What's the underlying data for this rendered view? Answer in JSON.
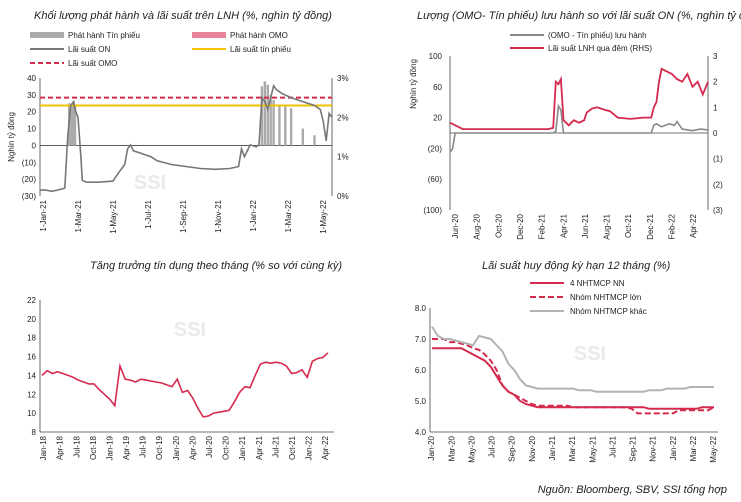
{
  "source_note": "Nguồn: Bloomberg, SBV, SSI tổng hợp",
  "watermark": "SSI",
  "chart_data": [
    {
      "id": "c1",
      "type": "bar+line",
      "title": "Khối lượng phát hành và lãi suất trên LNH (%, nghìn tỷ đồng)",
      "ylabel": "Nghìn tỷ đồng",
      "ylim": [
        -30,
        40
      ],
      "yticks": [
        "(30)",
        "(20)",
        "(10)",
        "0",
        "10",
        "20",
        "30",
        "40"
      ],
      "y2lim": [
        0,
        3
      ],
      "y2ticks": [
        "0%",
        "1%",
        "2%",
        "3%"
      ],
      "x_labels": [
        "1-Jan-21",
        "1-Mar-21",
        "1-May-21",
        "1-Jul-21",
        "1-Sep-21",
        "1-Nov-21",
        "1-Jan-22",
        "1-Mar-22",
        "1-May-22"
      ],
      "legend": [
        "Phát hành Tín phiếu",
        "Phát hành OMO",
        "Lãi suất ON",
        "Lãi suất tín phiếu",
        "Lãi suất OMO"
      ],
      "colors": {
        "tinphieu_bar": "#aaaaaa",
        "omo_bar": "#e8839a",
        "on": "#777777",
        "tinphieu_rate": "#f5c400",
        "omo_rate": "#d42a4d"
      },
      "omo_rate": 2.5,
      "tinphieu_rate": 2.3,
      "on_rate_points": [
        [
          0,
          0.15
        ],
        [
          0.02,
          0.15
        ],
        [
          0.04,
          0.12
        ],
        [
          0.06,
          0.15
        ],
        [
          0.085,
          0.2
        ],
        [
          0.095,
          1.5
        ],
        [
          0.105,
          2.3
        ],
        [
          0.115,
          2.4
        ],
        [
          0.12,
          2.2
        ],
        [
          0.13,
          2.0
        ],
        [
          0.14,
          1.0
        ],
        [
          0.145,
          0.4
        ],
        [
          0.16,
          0.35
        ],
        [
          0.2,
          0.35
        ],
        [
          0.25,
          0.38
        ],
        [
          0.27,
          0.6
        ],
        [
          0.29,
          0.8
        ],
        [
          0.3,
          1.2
        ],
        [
          0.31,
          1.3
        ],
        [
          0.32,
          1.15
        ],
        [
          0.34,
          1.1
        ],
        [
          0.38,
          1.0
        ],
        [
          0.4,
          0.9
        ],
        [
          0.45,
          0.8
        ],
        [
          0.5,
          0.75
        ],
        [
          0.55,
          0.7
        ],
        [
          0.6,
          0.68
        ],
        [
          0.65,
          0.7
        ],
        [
          0.68,
          0.75
        ],
        [
          0.69,
          1.2
        ],
        [
          0.7,
          1.0
        ],
        [
          0.72,
          1.3
        ],
        [
          0.74,
          1.25
        ],
        [
          0.75,
          1.3
        ],
        [
          0.76,
          2.5
        ],
        [
          0.77,
          2.4
        ],
        [
          0.78,
          2.2
        ],
        [
          0.79,
          2.5
        ],
        [
          0.8,
          2.8
        ],
        [
          0.81,
          2.7
        ],
        [
          0.83,
          2.6
        ],
        [
          0.86,
          2.5
        ],
        [
          0.9,
          2.4
        ],
        [
          0.94,
          2.3
        ],
        [
          0.96,
          2.2
        ],
        [
          0.97,
          1.9
        ],
        [
          0.98,
          1.4
        ],
        [
          0.99,
          2.1
        ],
        [
          1,
          2.0
        ]
      ],
      "bars": [
        [
          0.095,
          2
        ],
        [
          0.1,
          25
        ],
        [
          0.108,
          23
        ],
        [
          0.115,
          26
        ],
        [
          0.12,
          24
        ],
        [
          0.76,
          35
        ],
        [
          0.77,
          38
        ],
        [
          0.78,
          36
        ],
        [
          0.79,
          30
        ],
        [
          0.8,
          27
        ],
        [
          0.82,
          24
        ],
        [
          0.84,
          23
        ],
        [
          0.86,
          22
        ],
        [
          0.9,
          10
        ],
        [
          0.94,
          6
        ]
      ]
    },
    {
      "id": "c2",
      "type": "bar+line",
      "title": "Lượng (OMO- Tín phiếu) lưu hành so với lãi suất ON (%, nghìn tỷ đồng)",
      "ylabel": "Nghìn tỷ đồng",
      "ylim": [
        -100,
        100
      ],
      "yticks": [
        "(100)",
        "(60)",
        "(20)",
        "20",
        "60",
        "100"
      ],
      "y2lim": [
        -3,
        3
      ],
      "y2ticks": [
        "(3)",
        "(2)",
        "(1)",
        "0",
        "1",
        "2",
        "3"
      ],
      "x_labels": [
        "Jun-20",
        "Aug-20",
        "Oct-20",
        "Dec-20",
        "Feb-21",
        "Apr-21",
        "Jun-21",
        "Aug-21",
        "Oct-21",
        "Dec-21",
        "Feb-22",
        "Apr-22"
      ],
      "legend": [
        "(OMO - Tín phiếu) lưu hành",
        "Lãi suất LNH qua đêm (RHS)"
      ],
      "colors": {
        "omo": "#888888",
        "rate": "#d42a4d"
      },
      "omo_points": [
        [
          0,
          -25
        ],
        [
          0.01,
          -20
        ],
        [
          0.02,
          0
        ],
        [
          0.4,
          0
        ],
        [
          0.41,
          2
        ],
        [
          0.42,
          35
        ],
        [
          0.43,
          30
        ],
        [
          0.44,
          0
        ],
        [
          0.78,
          0
        ],
        [
          0.79,
          10
        ],
        [
          0.8,
          12
        ],
        [
          0.82,
          8
        ],
        [
          0.85,
          12
        ],
        [
          0.87,
          10
        ],
        [
          0.88,
          15
        ],
        [
          0.9,
          5
        ],
        [
          0.94,
          3
        ],
        [
          0.97,
          5
        ],
        [
          1,
          4
        ]
      ],
      "rate_points": [
        [
          0,
          0.4
        ],
        [
          0.02,
          0.3
        ],
        [
          0.05,
          0.15
        ],
        [
          0.1,
          0.15
        ],
        [
          0.2,
          0.15
        ],
        [
          0.3,
          0.15
        ],
        [
          0.38,
          0.15
        ],
        [
          0.4,
          0.2
        ],
        [
          0.41,
          2.0
        ],
        [
          0.42,
          1.9
        ],
        [
          0.43,
          2.1
        ],
        [
          0.44,
          0.5
        ],
        [
          0.46,
          0.3
        ],
        [
          0.48,
          0.5
        ],
        [
          0.5,
          0.4
        ],
        [
          0.52,
          0.5
        ],
        [
          0.53,
          0.8
        ],
        [
          0.55,
          0.95
        ],
        [
          0.57,
          1.0
        ],
        [
          0.6,
          0.9
        ],
        [
          0.62,
          0.85
        ],
        [
          0.65,
          0.6
        ],
        [
          0.7,
          0.55
        ],
        [
          0.75,
          0.6
        ],
        [
          0.78,
          0.6
        ],
        [
          0.79,
          1.0
        ],
        [
          0.8,
          1.2
        ],
        [
          0.81,
          2.0
        ],
        [
          0.82,
          2.5
        ],
        [
          0.84,
          2.4
        ],
        [
          0.86,
          2.3
        ],
        [
          0.88,
          2.1
        ],
        [
          0.9,
          2.0
        ],
        [
          0.92,
          2.3
        ],
        [
          0.94,
          1.8
        ],
        [
          0.96,
          2.0
        ],
        [
          0.98,
          1.5
        ],
        [
          1,
          2.0
        ]
      ]
    },
    {
      "id": "c3",
      "type": "line",
      "title": "Tăng trưởng tín dụng theo tháng (% so với cùng kỳ)",
      "ylim": [
        8,
        22
      ],
      "yticks": [
        "8",
        "10",
        "12",
        "14",
        "16",
        "18",
        "20",
        "22"
      ],
      "x_labels": [
        "Jan-18",
        "Apr-18",
        "Jul-18",
        "Oct-18",
        "Jan-19",
        "Apr-19",
        "Jul-19",
        "Oct-19",
        "Jan-20",
        "Apr-20",
        "Jul-20",
        "Oct-20",
        "Jan-21",
        "Apr-21",
        "Jul-21",
        "Oct-21",
        "Jan-22",
        "Apr-22"
      ],
      "color": "#d42a4d",
      "values": [
        14.0,
        14.5,
        14.2,
        14.4,
        14.2,
        14.0,
        13.8,
        13.5,
        13.3,
        13.1,
        13.1,
        12.5,
        12.0,
        11.5,
        10.8,
        15.0,
        13.6,
        13.5,
        13.3,
        13.6,
        13.5,
        13.4,
        13.3,
        13.2,
        13.0,
        12.8,
        13.6,
        12.2,
        12.4,
        11.6,
        10.5,
        9.6,
        9.7,
        10.0,
        10.1,
        10.2,
        10.3,
        11.2,
        12.2,
        12.8,
        12.7,
        14.0,
        15.2,
        15.4,
        15.3,
        15.4,
        15.3,
        15.0,
        14.2,
        14.3,
        14.6,
        13.8,
        15.5,
        15.8,
        15.9,
        16.4
      ]
    },
    {
      "id": "c4",
      "type": "line",
      "title": "Lãi suất huy động kỳ hạn 12 tháng (%)",
      "ylim": [
        4.0,
        8.0
      ],
      "yticks": [
        "4.0",
        "5.0",
        "6.0",
        "7.0",
        "8.0"
      ],
      "x_labels": [
        "Jan-20",
        "Mar-20",
        "May-20",
        "Jul-20",
        "Sep-20",
        "Nov-20",
        "Jan-21",
        "Mar-21",
        "May-21",
        "Jul-21",
        "Sep-21",
        "Nov-21",
        "Jan-22",
        "Mar-22",
        "May-22"
      ],
      "series": [
        {
          "name": "4 NHTMCP NN",
          "style": "solid",
          "color": "#d42a4d",
          "values": [
            6.7,
            6.7,
            6.7,
            6.7,
            6.7,
            6.7,
            6.6,
            6.5,
            6.4,
            6.3,
            6.1,
            5.8,
            5.5,
            5.3,
            5.2,
            5.0,
            4.9,
            4.85,
            4.8,
            4.8,
            4.8,
            4.8,
            4.8,
            4.8,
            4.8,
            4.8,
            4.8,
            4.8,
            4.8,
            4.8,
            4.8,
            4.8,
            4.8,
            4.8,
            4.8,
            4.8,
            4.8,
            4.75,
            4.75,
            4.75,
            4.75,
            4.75,
            4.75,
            4.75,
            4.75,
            4.75,
            4.8,
            4.8,
            4.8
          ]
        },
        {
          "name": "Nhóm NHTMCP lớn",
          "style": "dashed",
          "color": "#d42a4d",
          "values": [
            7.0,
            7.0,
            7.0,
            6.9,
            6.9,
            6.85,
            6.8,
            6.7,
            6.65,
            6.5,
            6.3,
            6.0,
            5.5,
            5.3,
            5.2,
            5.1,
            5.0,
            4.9,
            4.85,
            4.85,
            4.85,
            4.85,
            4.85,
            4.85,
            4.8,
            4.8,
            4.8,
            4.8,
            4.8,
            4.8,
            4.8,
            4.8,
            4.8,
            4.8,
            4.75,
            4.6,
            4.6,
            4.6,
            4.6,
            4.6,
            4.6,
            4.6,
            4.7,
            4.7,
            4.7,
            4.7,
            4.7,
            4.7,
            4.8
          ]
        },
        {
          "name": "Nhóm NHTMCP khác",
          "style": "solid",
          "color": "#b3b3b3",
          "values": [
            7.4,
            7.1,
            7.0,
            7.0,
            6.95,
            6.9,
            6.85,
            6.8,
            7.1,
            7.05,
            7.0,
            6.8,
            6.6,
            6.2,
            6.0,
            5.7,
            5.5,
            5.45,
            5.4,
            5.4,
            5.4,
            5.4,
            5.4,
            5.4,
            5.4,
            5.35,
            5.35,
            5.35,
            5.3,
            5.3,
            5.3,
            5.3,
            5.3,
            5.3,
            5.3,
            5.3,
            5.3,
            5.35,
            5.35,
            5.35,
            5.4,
            5.4,
            5.4,
            5.4,
            5.45,
            5.45,
            5.45,
            5.45,
            5.45
          ]
        }
      ]
    }
  ]
}
